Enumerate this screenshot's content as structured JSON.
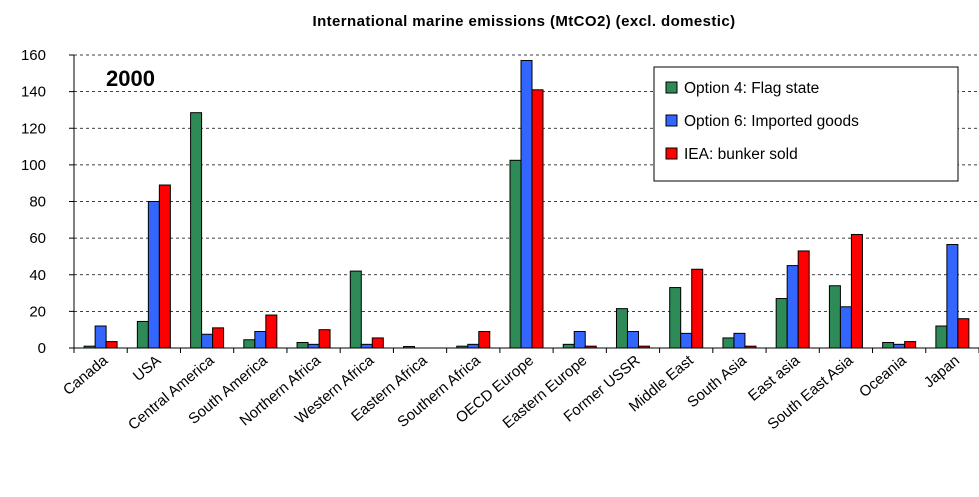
{
  "chart_data": {
    "type": "bar",
    "title": "International marine emissions (MtCO2) (excl. domestic)",
    "annotation": "2000",
    "xlabel": "",
    "ylabel": "",
    "ylim": [
      0,
      160
    ],
    "yticks": [
      0,
      20,
      40,
      60,
      80,
      100,
      120,
      140,
      160
    ],
    "grid": "horizontal-dashed",
    "legend_position": "top-right",
    "categories": [
      "Canada",
      "USA",
      "Central America",
      "South America",
      "Northern Africa",
      "Western Africa",
      "Eastern Africa",
      "Southern Africa",
      "OECD Europe",
      "Eastern Europe",
      "Former USSR",
      "Middle East",
      "South Asia",
      "East asia",
      "South East Asia",
      "Oceania",
      "Japan"
    ],
    "series": [
      {
        "name": "Option 4: Flag state",
        "color": "#2e8b57",
        "values": [
          1,
          14.5,
          128.5,
          4.5,
          3,
          42,
          0.8,
          1,
          102.5,
          2,
          21.5,
          33,
          5.5,
          27,
          34,
          3,
          12
        ]
      },
      {
        "name": "Option 6: Imported goods",
        "color": "#3366ff",
        "values": [
          12,
          80,
          7.5,
          9,
          2,
          2,
          0,
          2,
          157,
          9,
          9,
          8,
          8,
          45,
          22.5,
          2,
          56.5
        ]
      },
      {
        "name": "IEA: bunker sold",
        "color": "#ff0000",
        "values": [
          3.5,
          89,
          11,
          18,
          10,
          5.5,
          0,
          9,
          141,
          1,
          1,
          43,
          1,
          53,
          62,
          3.5,
          16
        ]
      }
    ]
  }
}
